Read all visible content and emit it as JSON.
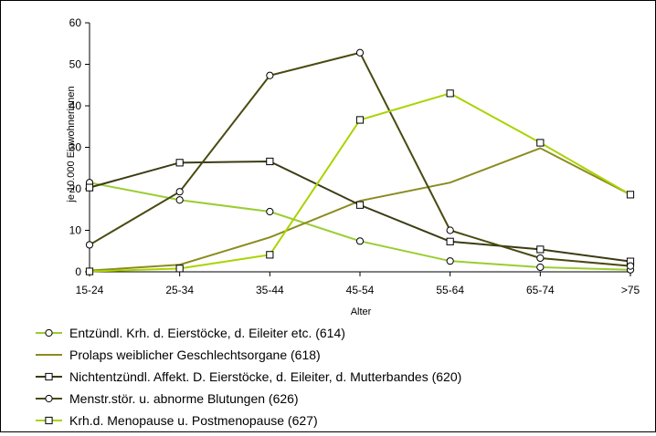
{
  "chart_data": {
    "type": "line",
    "title": "",
    "xlabel": "Alter",
    "ylabel": "je 10.000 Einwohnerinnen",
    "categories": [
      "15-24",
      "25-34",
      "35-44",
      "45-54",
      "55-64",
      "65-74",
      ">75"
    ],
    "ylim": [
      0,
      60
    ],
    "yticks": [
      0,
      10,
      20,
      30,
      40,
      50,
      60
    ],
    "grid": false,
    "legend_position": "bottom",
    "series": [
      {
        "name": "Entzündl. Krh. d. Eierstöcke, d. Eileiter etc.  (614)",
        "values": [
          21.5,
          17.3,
          14.5,
          7.4,
          2.6,
          1.1,
          0.5
        ],
        "color": "#9acd32",
        "marker": "circle"
      },
      {
        "name": "Prolaps weiblicher Geschlechtsorgane (618)",
        "values": [
          0.3,
          1.7,
          8.3,
          17.1,
          21.5,
          29.8,
          18.6
        ],
        "color": "#8b8b1f",
        "marker": "none"
      },
      {
        "name": "Nichtentzündl. Affekt. D. Eierstöcke, d. Eileiter, d. Mutterbandes (620)",
        "values": [
          20.3,
          26.3,
          26.6,
          16.1,
          7.3,
          5.4,
          2.5
        ],
        "color": "#3b3b14",
        "marker": "square"
      },
      {
        "name": "Menstr.stör. u. abnorme Blutungen (626)",
        "values": [
          6.5,
          19.3,
          47.3,
          52.8,
          10.0,
          3.3,
          1.4
        ],
        "color": "#4a4a12",
        "marker": "circle"
      },
      {
        "name": "Krh.d. Menopause u. Postmenopause (627)",
        "values": [
          0.1,
          0.8,
          4.1,
          36.6,
          43.0,
          31.1,
          18.6
        ],
        "color": "#a8d400",
        "marker": "square"
      }
    ]
  }
}
